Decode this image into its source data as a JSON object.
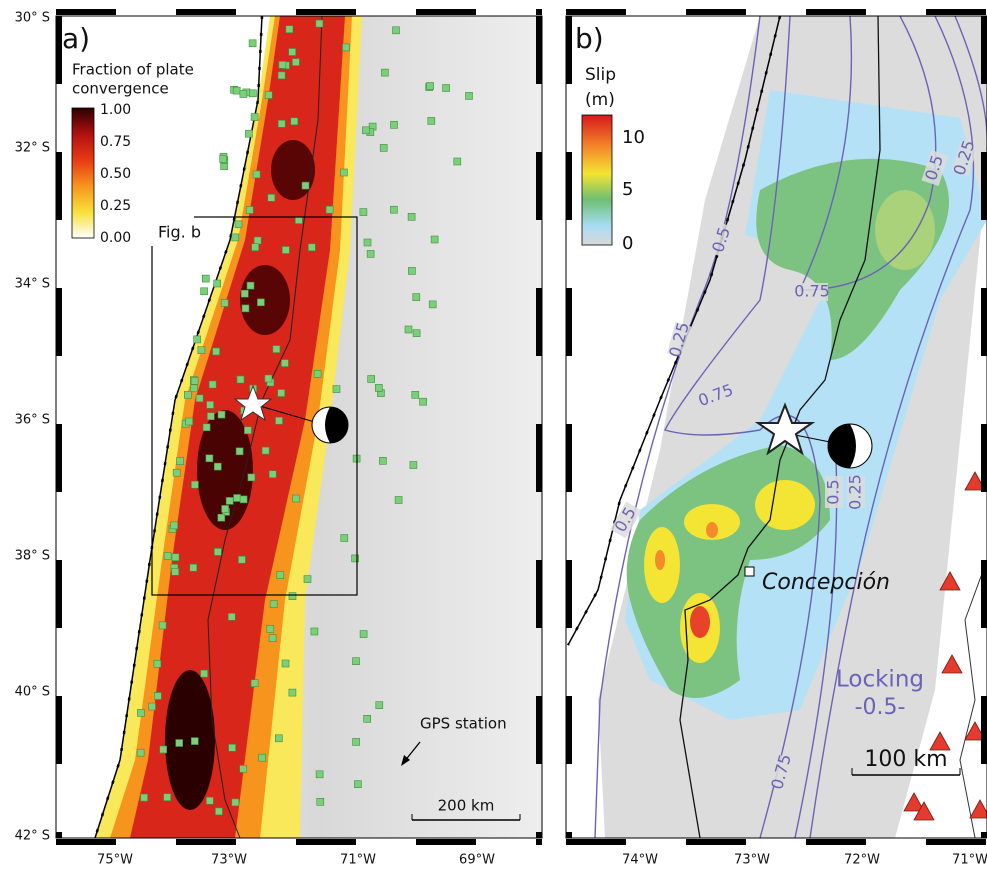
{
  "panel_a": {
    "label": "a)",
    "colorbar": {
      "title": [
        "Fraction of plate",
        "convergence"
      ],
      "ticks": [
        "1.00",
        "0.75",
        "0.50",
        "0.25",
        "0.00"
      ]
    },
    "box_label": "Fig. b",
    "gps_label": "GPS station",
    "scale_label": "200 km",
    "lat_labels": [
      "30° S",
      "32° S",
      "34° S",
      "36° S",
      "38° S",
      "40° S",
      "42° S"
    ],
    "lon_labels": [
      "75°W",
      "73°W",
      "71°W",
      "69°W"
    ]
  },
  "panel_b": {
    "label": "b)",
    "colorbar": {
      "title": [
        "Slip",
        "(m)"
      ],
      "ticks": [
        "10",
        "5",
        "0"
      ]
    },
    "contour_labels": [
      "0.5",
      "0.25",
      "0.75",
      "0.5",
      "0.25",
      "0.75",
      "0.5",
      "0.5",
      "0.25",
      "0.75"
    ],
    "city": "Concepción",
    "legend": [
      "Locking",
      "-0.5-"
    ],
    "scale_label": "100 km",
    "lon_labels": [
      "74°W",
      "73°W",
      "72°W",
      "71°W"
    ]
  }
}
